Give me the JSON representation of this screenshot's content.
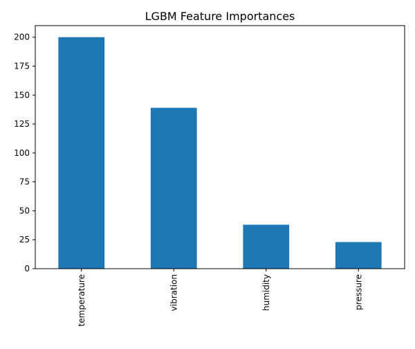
{
  "chart_data": {
    "type": "bar",
    "title": "LGBM Feature Importances",
    "xlabel": "",
    "ylabel": "",
    "categories": [
      "temperature",
      "vibration",
      "humidity",
      "pressure"
    ],
    "values": [
      200,
      139,
      38,
      23
    ],
    "ylim": [
      0,
      210
    ],
    "yticks": [
      0,
      25,
      50,
      75,
      100,
      125,
      150,
      175,
      200
    ],
    "grid": false,
    "legend": "none",
    "bar_color": "#1f77b4",
    "x_tick_rotation": "vertical"
  }
}
